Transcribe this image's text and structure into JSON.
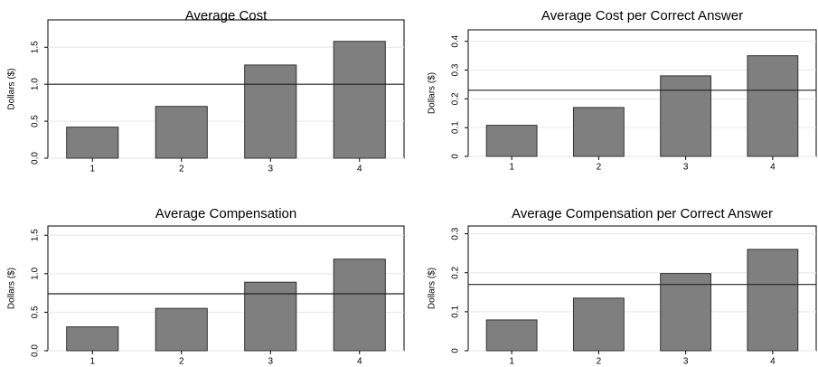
{
  "chart_data": [
    {
      "type": "bar",
      "title": "Average Cost",
      "y_label": "Dollars ($)",
      "categories": [
        "1",
        "2",
        "3",
        "4"
      ],
      "values": [
        0.42,
        0.7,
        1.26,
        1.58
      ],
      "color": "#7f7f7f",
      "reference_line": 1.0,
      "ylim": [
        0,
        1.87
      ],
      "yticks": [
        {
          "value": 0,
          "label": "0.0"
        },
        0.5,
        {
          "value": 1,
          "label": "1.0"
        },
        1.5
      ],
      "grid": true
    },
    {
      "type": "bar",
      "title": "Average Cost per Correct Answer",
      "y_label": "Dollars ($)",
      "categories": [
        "1",
        "2",
        "3",
        "4"
      ],
      "values": [
        0.108,
        0.17,
        0.28,
        0.35
      ],
      "color": "#7f7f7f",
      "reference_line": 0.23,
      "ylim": [
        0,
        0.44
      ],
      "yticks": [
        0,
        0.1,
        0.2,
        0.3,
        0.4
      ],
      "grid": true
    },
    {
      "type": "bar",
      "title": "Average Compensation",
      "y_label": "Dollars ($)",
      "categories": [
        "1",
        "2",
        "3",
        "4"
      ],
      "values": [
        0.31,
        0.55,
        0.89,
        1.19
      ],
      "color": "#7f7f7f",
      "reference_line": 0.74,
      "ylim": [
        0,
        1.62
      ],
      "yticks": [
        {
          "value": 0,
          "label": "0.0"
        },
        0.5,
        {
          "value": 1,
          "label": "1.0"
        },
        1.5
      ],
      "grid": true
    },
    {
      "type": "bar",
      "title": "Average Compensation per Correct Answer",
      "y_label": "Dollars ($)",
      "categories": [
        "1",
        "2",
        "3",
        "4"
      ],
      "values": [
        0.079,
        0.135,
        0.198,
        0.26
      ],
      "color": "#7f7f7f",
      "reference_line": 0.17,
      "ylim": [
        0,
        0.32
      ],
      "yticks": [
        0,
        0.1,
        0.2,
        0.3
      ],
      "grid": true
    }
  ]
}
